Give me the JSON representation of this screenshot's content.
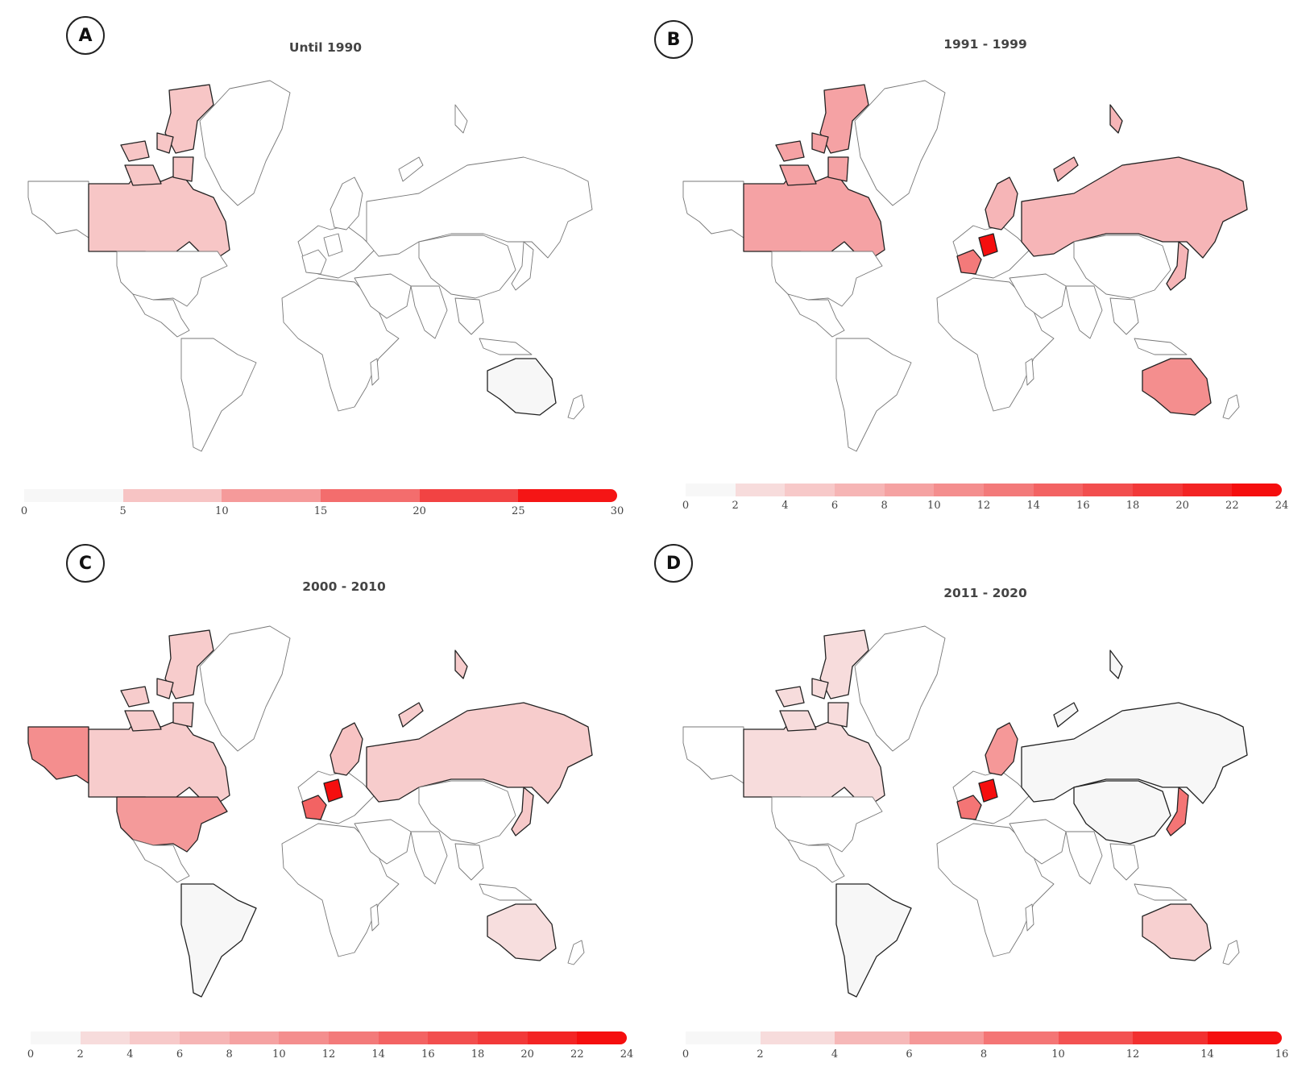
{
  "panels": [
    {
      "label": "A",
      "title": "Until 1990",
      "scale": {
        "ticks": [
          "0",
          "5",
          "10",
          "15",
          "20",
          "25",
          "30"
        ],
        "colors": [
          "#f7f7f7",
          "#f7c4c4",
          "#f59a9a",
          "#f36d6d",
          "#f24343",
          "#f51515"
        ]
      },
      "fills": {
        "canada": "#f7c6c6",
        "usa": "#ffffff",
        "russia": "#ffffff",
        "europe": "#ffffff",
        "germany": "#ffffff",
        "france": "#ffffff",
        "scandinavia": "#ffffff",
        "alaska": "#ffffff",
        "japan": "#ffffff",
        "china": "#ffffff",
        "australia": "#f7f7f7",
        "southamerica": "#ffffff",
        "newzealand": "#ffffff"
      }
    },
    {
      "label": "B",
      "title": "1991 - 1999",
      "scale": {
        "ticks": [
          "0",
          "2",
          "4",
          "6",
          "8",
          "10",
          "12",
          "14",
          "16",
          "18",
          "20",
          "22",
          "24"
        ],
        "colors": [
          "#f7f7f7",
          "#f7dcdc",
          "#f7c9c9",
          "#f6b5b5",
          "#f5a2a2",
          "#f48e8e",
          "#f37a7a",
          "#f36363",
          "#f24e4e",
          "#f23939",
          "#f32424",
          "#f50e0e"
        ]
      },
      "fills": {
        "canada": "#f5a2a4",
        "usa": "#ffffff",
        "russia": "#f6b5b7",
        "europe": "#ffffff",
        "germany": "#f50e0e",
        "france": "#f37a7a",
        "scandinavia": "#f6b5b7",
        "alaska": "#ffffff",
        "japan": "#f6b5b7",
        "china": "#ffffff",
        "australia": "#f48e8e",
        "southamerica": "#ffffff",
        "newzealand": "#ffffff"
      }
    },
    {
      "label": "C",
      "title": "2000 - 2010",
      "scale": {
        "ticks": [
          "0",
          "2",
          "4",
          "6",
          "8",
          "10",
          "12",
          "14",
          "16",
          "18",
          "20",
          "22",
          "24"
        ],
        "colors": [
          "#f7f7f7",
          "#f7dcdc",
          "#f7c9c9",
          "#f6b5b5",
          "#f5a2a2",
          "#f48e8e",
          "#f37a7a",
          "#f36363",
          "#f24e4e",
          "#f23939",
          "#f32424",
          "#f50e0e"
        ]
      },
      "fills": {
        "canada": "#f7cccc",
        "usa": "#f49a9a",
        "russia": "#f7cccc",
        "europe": "#ffffff",
        "germany": "#f50e0e",
        "france": "#f36363",
        "scandinavia": "#f7c3c3",
        "alaska": "#f48e8e",
        "japan": "#f7c9c9",
        "china": "#ffffff",
        "australia": "#f7dede",
        "southamerica": "#f7f7f7",
        "newzealand": "#ffffff"
      }
    },
    {
      "label": "D",
      "title": "2011 - 2020",
      "scale": {
        "ticks": [
          "0",
          "2",
          "4",
          "6",
          "8",
          "10",
          "12",
          "14",
          "16"
        ],
        "colors": [
          "#f7f7f7",
          "#f7dcdc",
          "#f6b8b8",
          "#f59898",
          "#f47575",
          "#f35252",
          "#f23030",
          "#f50e0e"
        ]
      },
      "fills": {
        "canada": "#f7dcdc",
        "usa": "#ffffff",
        "russia": "#f7f7f7",
        "europe": "#ffffff",
        "germany": "#f50e0e",
        "france": "#f47575",
        "scandinavia": "#f59898",
        "alaska": "#ffffff",
        "japan": "#f47575",
        "china": "#f7f7f7",
        "australia": "#f7d0d0",
        "southamerica": "#f7f7f7",
        "newzealand": "#ffffff"
      }
    }
  ]
}
